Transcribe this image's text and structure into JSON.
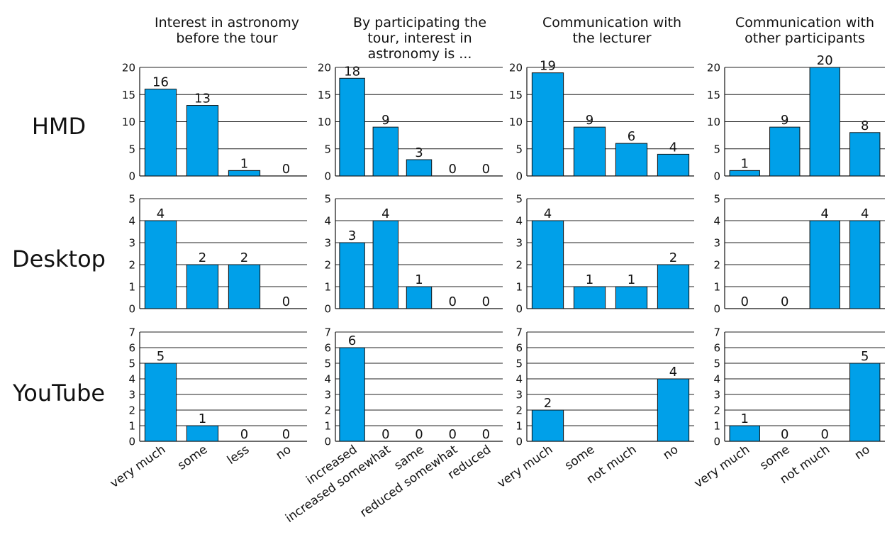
{
  "colors": {
    "bar": "#00A0E9"
  },
  "chart_data": {
    "type": "bar",
    "layout": "grid-3x4",
    "grid": true,
    "row_labels": [
      "HMD",
      "Desktop",
      "YouTube"
    ],
    "columns": [
      {
        "title_lines": [
          "Interest in astronomy",
          "before the tour"
        ],
        "categories": [
          "very much",
          "some",
          "less",
          "no"
        ]
      },
      {
        "title_lines": [
          "By participating the",
          "tour, interest in",
          "astronomy is ..."
        ],
        "categories": [
          "increased",
          "increased somewhat",
          "same",
          "reduced somewhat",
          "reduced"
        ]
      },
      {
        "title_lines": [
          "Communication with",
          "the lecturer"
        ],
        "categories": [
          "very much",
          "some",
          "not much",
          "no"
        ]
      },
      {
        "title_lines": [
          "Communication with",
          "other participants"
        ],
        "categories": [
          "very much",
          "some",
          "not much",
          "no"
        ]
      }
    ],
    "panels": [
      {
        "row": 0,
        "col": 0,
        "values": [
          16,
          13,
          1,
          0
        ],
        "labels": [
          "16",
          "13",
          "1",
          "0"
        ],
        "ylim": [
          0,
          20
        ],
        "yticks": [
          0,
          5,
          10,
          15,
          20
        ]
      },
      {
        "row": 0,
        "col": 1,
        "values": [
          18,
          9,
          3,
          0,
          0
        ],
        "labels": [
          "18",
          "9",
          "3",
          "0",
          "0"
        ],
        "ylim": [
          0,
          20
        ],
        "yticks": [
          0,
          5,
          10,
          15,
          20
        ]
      },
      {
        "row": 0,
        "col": 2,
        "values": [
          19,
          9,
          6,
          4
        ],
        "labels": [
          "19",
          "9",
          "6",
          "4"
        ],
        "ylim": [
          0,
          20
        ],
        "yticks": [
          0,
          5,
          10,
          15,
          20
        ]
      },
      {
        "row": 0,
        "col": 3,
        "values": [
          1,
          9,
          20,
          8
        ],
        "labels": [
          "1",
          "9",
          "20",
          "8"
        ],
        "ylim": [
          0,
          20
        ],
        "yticks": [
          0,
          5,
          10,
          15,
          20
        ]
      },
      {
        "row": 1,
        "col": 0,
        "values": [
          4,
          2,
          2,
          0
        ],
        "labels": [
          "4",
          "2",
          "2",
          "0"
        ],
        "ylim": [
          0,
          5
        ],
        "yticks": [
          0,
          1,
          2,
          3,
          4,
          5
        ]
      },
      {
        "row": 1,
        "col": 1,
        "values": [
          3,
          4,
          1,
          0,
          0
        ],
        "labels": [
          "3",
          "4",
          "1",
          "0",
          "0"
        ],
        "ylim": [
          0,
          5
        ],
        "yticks": [
          0,
          1,
          2,
          3,
          4,
          5
        ]
      },
      {
        "row": 1,
        "col": 2,
        "values": [
          4,
          1,
          1,
          2
        ],
        "labels": [
          "4",
          "1",
          "1",
          "2"
        ],
        "ylim": [
          0,
          5
        ],
        "yticks": [
          0,
          1,
          2,
          3,
          4,
          5
        ]
      },
      {
        "row": 1,
        "col": 3,
        "values": [
          0,
          0,
          4,
          4
        ],
        "labels": [
          "0",
          "0",
          "4",
          "4"
        ],
        "ylim": [
          0,
          5
        ],
        "yticks": [
          0,
          1,
          2,
          3,
          4,
          5
        ]
      },
      {
        "row": 2,
        "col": 0,
        "values": [
          5,
          1,
          0,
          0
        ],
        "labels": [
          "5",
          "1",
          "0",
          "0"
        ],
        "ylim": [
          0,
          7
        ],
        "yticks": [
          0,
          1,
          2,
          3,
          4,
          5,
          6,
          7
        ]
      },
      {
        "row": 2,
        "col": 1,
        "values": [
          6,
          0,
          0,
          0,
          0
        ],
        "labels": [
          "6",
          "0",
          "0",
          "0",
          "0"
        ],
        "ylim": [
          0,
          7
        ],
        "yticks": [
          0,
          1,
          2,
          3,
          4,
          5,
          6,
          7
        ]
      },
      {
        "row": 2,
        "col": 2,
        "values": [
          2,
          0,
          0,
          4
        ],
        "labels": [
          "2",
          "",
          "",
          "4"
        ],
        "ylim": [
          0,
          7
        ],
        "yticks": [
          0,
          1,
          2,
          3,
          4,
          5,
          6,
          7
        ]
      },
      {
        "row": 2,
        "col": 3,
        "values": [
          1,
          0,
          0,
          5
        ],
        "labels": [
          "1",
          "0",
          "0",
          "5"
        ],
        "ylim": [
          0,
          7
        ],
        "yticks": [
          0,
          1,
          2,
          3,
          4,
          5,
          6,
          7
        ]
      }
    ]
  }
}
